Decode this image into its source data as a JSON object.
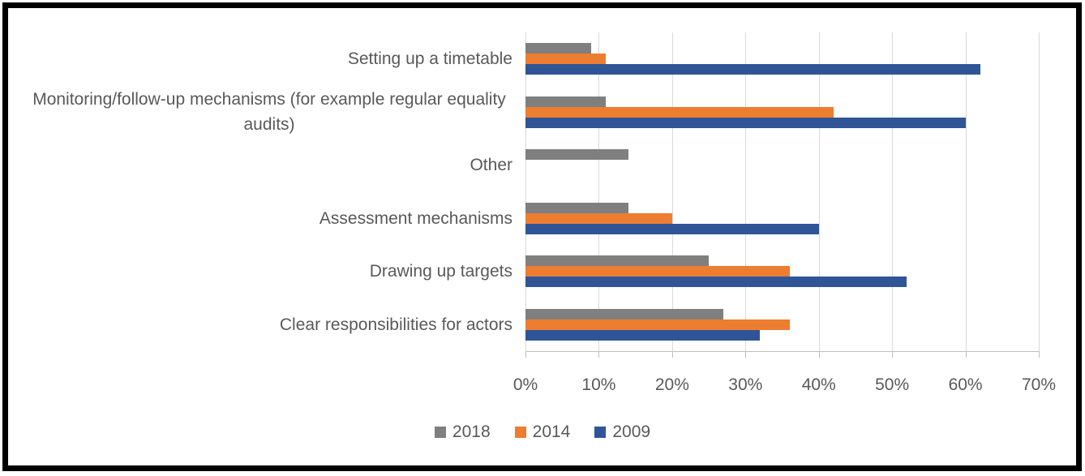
{
  "chart_data": {
    "type": "bar",
    "orientation": "horizontal",
    "title": "",
    "categories": [
      "Setting up a timetable",
      "Monitoring/follow-up mechanisms (for example regular equality audits)",
      "Other",
      "Assessment mechanisms",
      "Drawing up targets",
      "Clear responsibilities for actors"
    ],
    "series": [
      {
        "name": "2018",
        "color": "#7f7f7f",
        "values": [
          9,
          11,
          14,
          14,
          25,
          27
        ]
      },
      {
        "name": "2014",
        "color": "#ed7d31",
        "values": [
          11,
          42,
          0,
          20,
          36,
          36
        ]
      },
      {
        "name": "2009",
        "color": "#2f5597",
        "values": [
          62,
          60,
          0,
          40,
          52,
          32
        ]
      }
    ],
    "x_axis": {
      "tick_labels": [
        "0%",
        "10%",
        "20%",
        "30%",
        "40%",
        "50%",
        "60%",
        "70%"
      ],
      "min": 0,
      "max": 70,
      "step": 10,
      "unit": "%"
    },
    "legend": {
      "position": "bottom",
      "entries": [
        "2018",
        "2014",
        "2009"
      ]
    },
    "grid": true
  },
  "colors": {
    "gridline": "#d9d9d9",
    "axis": "#bfbfbf",
    "text": "#595959",
    "frame": "#000000",
    "background": "#ffffff"
  }
}
